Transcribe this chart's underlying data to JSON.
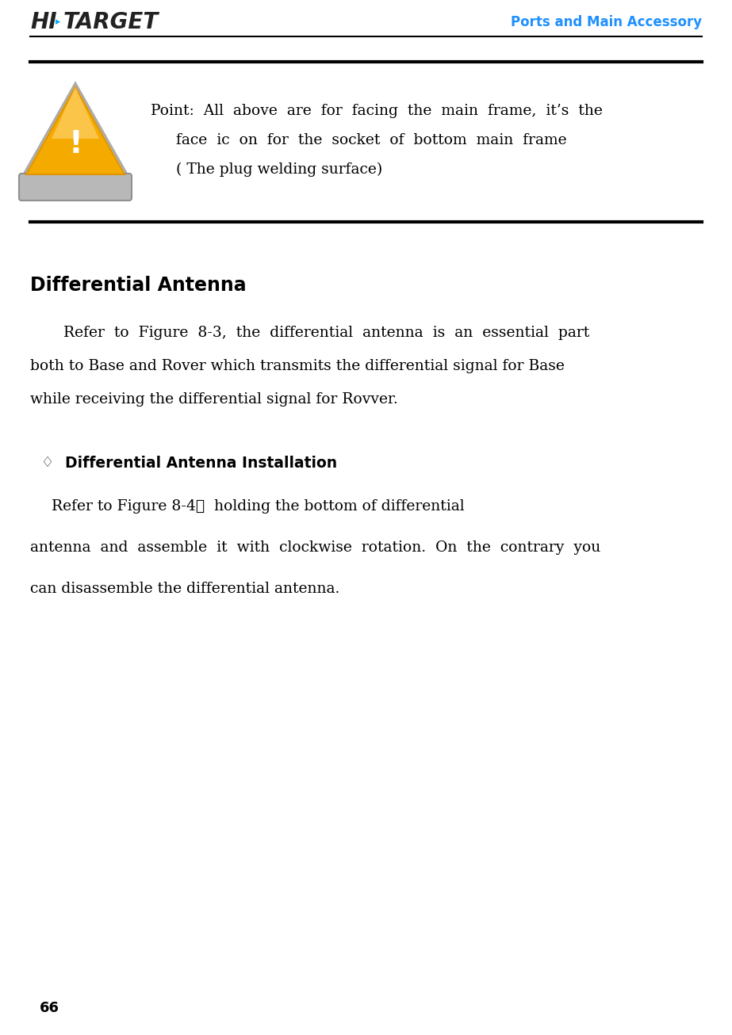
{
  "bg_color": "#ffffff",
  "header_title": "Ports and Main Accessory",
  "header_title_color": "#1e90ff",
  "notice_text_line1": "Point:  All  above  are  for  facing  the  main  frame,  it’s  the",
  "notice_text_line2": "face  ic  on  for  the  socket  of  bottom  main  frame",
  "notice_text_line3": "( The plug welding surface)",
  "section_title": "Differential Antenna",
  "para1_line1": "Refer  to  Figure  8-3,  the  differential  antenna  is  an  essential  part",
  "para1_line2": "both to Base and Rover which transmits the differential signal for Base",
  "para1_line3": "while receiving the differential signal for Rovver.",
  "bullet_symbol": "♢",
  "subsection_title": "Differential Antenna Installation",
  "para2_line1": "Refer to Figure 8-4，  holding the bottom of differential",
  "para2_line2": "antenna  and  assemble  it  with  clockwise  rotation.  On  the  contrary  you",
  "para2_line3": "can disassemble the differential antenna.",
  "page_number": "66",
  "text_color": "#000000",
  "font_size_body": 13.5,
  "font_size_section": 17,
  "font_size_subsection": 13.5
}
